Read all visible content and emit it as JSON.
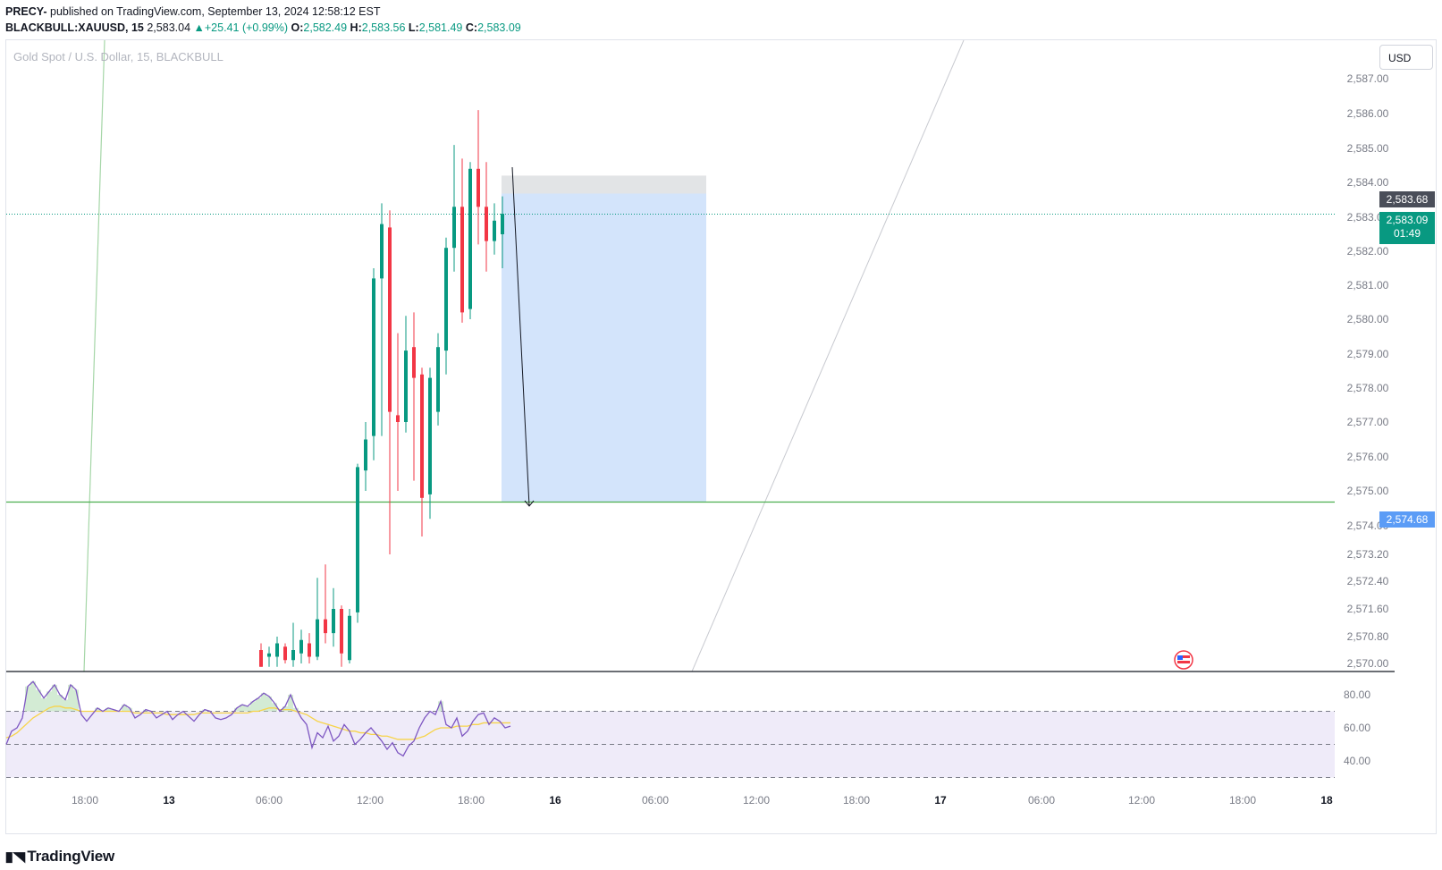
{
  "header": {
    "author": "PRECY-",
    "publish_text": " published on TradingView.com, September 13, 2024 12:58:12 EST",
    "symbol": "BLACKBULL:XAUUSD, 15",
    "last": "2,583.04",
    "change": "▲+25.41 (+0.99%)",
    "o_label": "O:",
    "o_value": "2,582.49",
    "h_label": "H:",
    "h_value": "2,583.56",
    "l_label": "L:",
    "l_value": "2,581.49",
    "c_label": "C:",
    "c_value": "2,583.09"
  },
  "symbol_description": "Gold Spot / U.S. Dollar, 15, BLACKBULL",
  "currency_button": "USD",
  "price_tags": {
    "entry": "2,583.68",
    "last_price": "2,583.09",
    "countdown": "01:49",
    "target": "2,574.68"
  },
  "footer": {
    "brand": "TradingView",
    "logo_icon": "tradingview-logo-icon"
  },
  "colors": {
    "up": "#089981",
    "down": "#f23645",
    "target_zone": "#d1e3fb",
    "stop_zone": "#dddfe2",
    "rsi_line": "#7e57c2",
    "rsi_ma": "#f7d44a",
    "rsi_band": "#efebf9",
    "horizontal_line": "#4caf50"
  },
  "chart_data": [
    {
      "type": "candlestick",
      "title": "Gold Spot / U.S. Dollar, 15, BLACKBULL",
      "y_axis_ticks": [
        "2,570.00",
        "2,570.80",
        "2,571.60",
        "2,572.40",
        "2,573.20",
        "2,574.00",
        "2,575.00",
        "2,576.00",
        "2,577.00",
        "2,578.00",
        "2,579.00",
        "2,580.00",
        "2,581.00",
        "2,582.00",
        "2,583.00",
        "2,584.00",
        "2,585.00",
        "2,586.00",
        "2,587.00"
      ],
      "x_axis_ticks": [
        "18:00",
        "13",
        "06:00",
        "12:00",
        "18:00",
        "16",
        "06:00",
        "12:00",
        "18:00",
        "17",
        "06:00",
        "12:00",
        "18:00",
        "18"
      ],
      "ylim": [
        2570,
        2587
      ],
      "candles": [
        {
          "o": 2570.4,
          "h": 2570.6,
          "l": 2569.9,
          "c": 2569.9
        },
        {
          "o": 2570.2,
          "h": 2570.5,
          "l": 2569.9,
          "c": 2570.3
        },
        {
          "o": 2570.2,
          "h": 2570.8,
          "l": 2569.9,
          "c": 2570.6
        },
        {
          "o": 2570.5,
          "h": 2570.6,
          "l": 2570.0,
          "c": 2570.1
        },
        {
          "o": 2570.1,
          "h": 2571.2,
          "l": 2569.9,
          "c": 2570.4
        },
        {
          "o": 2570.3,
          "h": 2571.0,
          "l": 2570.0,
          "c": 2570.7
        },
        {
          "o": 2570.6,
          "h": 2570.9,
          "l": 2570.0,
          "c": 2570.2
        },
        {
          "o": 2570.2,
          "h": 2572.5,
          "l": 2570.1,
          "c": 2571.3
        },
        {
          "o": 2571.3,
          "h": 2572.9,
          "l": 2570.6,
          "c": 2570.9
        },
        {
          "o": 2570.9,
          "h": 2572.2,
          "l": 2570.5,
          "c": 2571.6
        },
        {
          "o": 2571.6,
          "h": 2571.7,
          "l": 2569.9,
          "c": 2570.3
        },
        {
          "o": 2570.1,
          "h": 2571.6,
          "l": 2570.0,
          "c": 2571.4
        },
        {
          "o": 2571.5,
          "h": 2575.8,
          "l": 2571.2,
          "c": 2575.7
        },
        {
          "o": 2575.6,
          "h": 2577.0,
          "l": 2575.0,
          "c": 2576.5
        },
        {
          "o": 2576.6,
          "h": 2581.5,
          "l": 2575.9,
          "c": 2581.2
        },
        {
          "o": 2581.2,
          "h": 2583.4,
          "l": 2576.6,
          "c": 2582.8
        },
        {
          "o": 2582.7,
          "h": 2583.2,
          "l": 2573.2,
          "c": 2577.3
        },
        {
          "o": 2577.2,
          "h": 2579.6,
          "l": 2575.0,
          "c": 2577.0
        },
        {
          "o": 2577.0,
          "h": 2580.1,
          "l": 2576.7,
          "c": 2579.1
        },
        {
          "o": 2579.2,
          "h": 2580.2,
          "l": 2575.3,
          "c": 2578.3
        },
        {
          "o": 2578.4,
          "h": 2578.6,
          "l": 2573.7,
          "c": 2574.8
        },
        {
          "o": 2574.9,
          "h": 2578.6,
          "l": 2574.2,
          "c": 2578.3
        },
        {
          "o": 2577.3,
          "h": 2579.6,
          "l": 2576.9,
          "c": 2579.2
        },
        {
          "o": 2579.1,
          "h": 2582.4,
          "l": 2578.4,
          "c": 2582.1
        },
        {
          "o": 2582.1,
          "h": 2585.1,
          "l": 2581.4,
          "c": 2583.3
        },
        {
          "o": 2583.3,
          "h": 2584.7,
          "l": 2579.9,
          "c": 2580.2
        },
        {
          "o": 2580.3,
          "h": 2584.6,
          "l": 2580.0,
          "c": 2584.4
        },
        {
          "o": 2584.4,
          "h": 2586.1,
          "l": 2582.2,
          "c": 2583.3
        },
        {
          "o": 2583.3,
          "h": 2584.6,
          "l": 2581.4,
          "c": 2582.3
        },
        {
          "o": 2582.3,
          "h": 2583.4,
          "l": 2581.9,
          "c": 2582.9
        },
        {
          "o": 2582.5,
          "h": 2583.6,
          "l": 2581.5,
          "c": 2583.1
        }
      ],
      "last_price": 2583.09,
      "position": {
        "side": "short",
        "entry": 2583.68,
        "stop": 2584.2,
        "target": 2574.68
      },
      "horizontal_line": 2574.68
    },
    {
      "type": "line",
      "title": "",
      "y_axis_ticks": [
        "40.00",
        "60.00",
        "80.00"
      ],
      "ylim": [
        30,
        90
      ],
      "bands": [
        70,
        50,
        30
      ],
      "series": [
        {
          "values": [
            50,
            58,
            60,
            66,
            85,
            88,
            83,
            78,
            82,
            86,
            80,
            77,
            86,
            83,
            68,
            64,
            68,
            72,
            70,
            72,
            71,
            70,
            74,
            72,
            66,
            68,
            71,
            70,
            66,
            68,
            70,
            65,
            68,
            70,
            67,
            64,
            68,
            71,
            70,
            66,
            65,
            66,
            68,
            72,
            74,
            73,
            76,
            78,
            81,
            79,
            75,
            70,
            73,
            80,
            72,
            66,
            62,
            48,
            57,
            54,
            61,
            52,
            55,
            62,
            58,
            50,
            53,
            57,
            60,
            56,
            52,
            47,
            51,
            45,
            43,
            49,
            52,
            60,
            66,
            70,
            68,
            76,
            62,
            60,
            66,
            55,
            58,
            64,
            68,
            69,
            62,
            66,
            64,
            60,
            61
          ]
        },
        {
          "values": [
            54,
            55,
            57,
            60,
            63,
            66,
            68,
            70,
            72,
            73,
            73,
            72,
            72,
            71,
            70,
            70,
            70,
            70,
            70,
            70,
            70,
            70,
            70,
            70,
            69,
            69,
            69,
            69,
            69,
            69,
            68,
            68,
            68,
            68,
            68,
            68,
            69,
            69,
            69,
            69,
            69,
            69,
            69,
            69,
            69,
            69,
            70,
            70,
            71,
            72,
            72,
            71,
            71,
            71,
            70,
            69,
            68,
            66,
            64,
            63,
            62,
            61,
            60,
            59,
            58,
            58,
            57,
            57,
            56,
            56,
            55,
            55,
            54,
            53,
            53,
            53,
            53,
            54,
            55,
            57,
            59,
            60,
            60,
            60,
            61,
            61,
            61,
            62,
            62,
            63,
            63,
            63,
            63,
            63,
            63
          ]
        }
      ]
    }
  ]
}
